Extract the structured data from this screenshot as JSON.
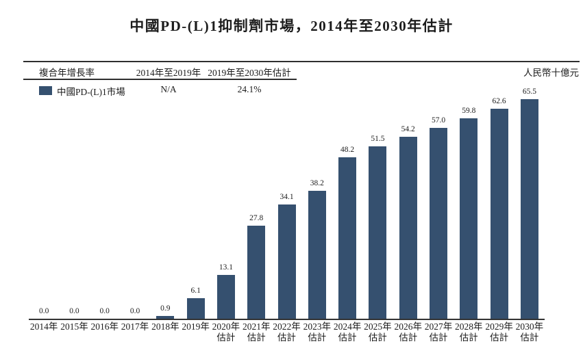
{
  "page": {
    "title": "中國PD-(L)1抑制劑市場，2014年至2030年估計",
    "unit_label": "人民幣十億元"
  },
  "cagr_table": {
    "row_header": "複合年增長率",
    "columns": [
      "2014年至2019年",
      "2019年至2030年估計"
    ],
    "series": {
      "label": "中國PD-(L)1市場",
      "values": [
        "N/A",
        "24.1%"
      ]
    }
  },
  "colors": {
    "bar": "#35506F",
    "rule": "#2E2E2E",
    "text": "#1C1C1C"
  },
  "chart_data": {
    "type": "bar",
    "title": "中國PD-(L)1抑制劑市場，2014年至2030年估計",
    "series_name": "中國PD-(L)1市場",
    "unit": "人民幣十億元",
    "categories": [
      "2014年",
      "2015年",
      "2016年",
      "2017年",
      "2018年",
      "2019年",
      "2020年估計",
      "2021年估計",
      "2022年估計",
      "2023年估計",
      "2024年估計",
      "2025年估計",
      "2026年估計",
      "2027年估計",
      "2028年估計",
      "2029年估計",
      "2030年估計"
    ],
    "category_lines": [
      [
        "2014年"
      ],
      [
        "2015年"
      ],
      [
        "2016年"
      ],
      [
        "2017年"
      ],
      [
        "2018年"
      ],
      [
        "2019年"
      ],
      [
        "2020年",
        "估計"
      ],
      [
        "2021年",
        "估計"
      ],
      [
        "2022年",
        "估計"
      ],
      [
        "2023年",
        "估計"
      ],
      [
        "2024年",
        "估計"
      ],
      [
        "2025年",
        "估計"
      ],
      [
        "2026年",
        "估計"
      ],
      [
        "2027年",
        "估計"
      ],
      [
        "2028年",
        "估計"
      ],
      [
        "2029年",
        "估計"
      ],
      [
        "2030年",
        "估計"
      ]
    ],
    "values": [
      0.0,
      0.0,
      0.0,
      0.0,
      0.9,
      6.1,
      13.1,
      27.8,
      34.1,
      38.2,
      48.2,
      51.5,
      54.2,
      57.0,
      59.8,
      62.6,
      65.5
    ],
    "value_labels": [
      "0.0",
      "0.0",
      "0.0",
      "0.0",
      "0.9",
      "6.1",
      "13.1",
      "27.8",
      "34.1",
      "38.2",
      "48.2",
      "51.5",
      "54.2",
      "57.0",
      "59.8",
      "62.6",
      "65.5"
    ],
    "cagr_2014_2019": "N/A",
    "cagr_2019_2030_est": "24.1%",
    "ylim": [
      0,
      70
    ],
    "bar_color": "#35506F",
    "grid": false,
    "legend_position": "top-left",
    "xlabel": "",
    "ylabel": "人民幣十億元"
  }
}
